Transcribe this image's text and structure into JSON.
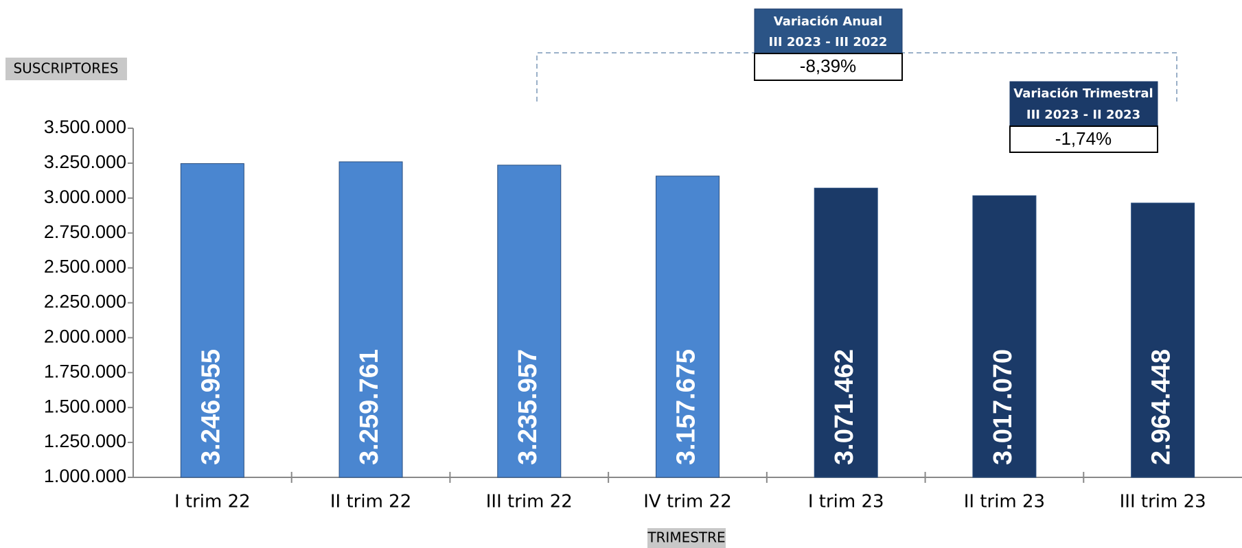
{
  "chart_data": {
    "type": "bar",
    "y_label": "SUSCRIPTORES",
    "x_label": "TRIMESTRE",
    "categories": [
      "I trim 22",
      "II trim 22",
      "III trim 22",
      "IV trim 22",
      "I trim 23",
      "II trim 23",
      "III trim 23"
    ],
    "values": [
      3246955,
      3259761,
      3235957,
      3157675,
      3071462,
      3017070,
      2964448
    ],
    "value_labels": [
      "3.246.955",
      "3.259.761",
      "3.235.957",
      "3.157.675",
      "3.071.462",
      "3.017.070",
      "2.964.448"
    ],
    "colors": [
      "#4a86d0",
      "#4a86d0",
      "#4a86d0",
      "#4a86d0",
      "#1b3a68",
      "#1b3a68",
      "#1b3a68"
    ],
    "ylim": [
      1000000,
      3500000
    ],
    "yticks": [
      {
        "value": 1000000,
        "label": "1.000.000"
      },
      {
        "value": 1250000,
        "label": "1.250.000"
      },
      {
        "value": 1500000,
        "label": "1.500.000"
      },
      {
        "value": 1750000,
        "label": "1.750.000"
      },
      {
        "value": 2000000,
        "label": "2.000.000"
      },
      {
        "value": 2250000,
        "label": "2.250.000"
      },
      {
        "value": 2500000,
        "label": "2.500.000"
      },
      {
        "value": 2750000,
        "label": "2.750.000"
      },
      {
        "value": 3000000,
        "label": "3.000.000"
      },
      {
        "value": 3250000,
        "label": "3.250.000"
      },
      {
        "value": 3500000,
        "label": "3.500.000"
      }
    ],
    "grid": false,
    "annotations": [
      {
        "title": "Variación Anual",
        "subtitle": "III 2023 - III 2022",
        "value": "-8,39%"
      },
      {
        "title": "Variación Trimestral",
        "subtitle": "III 2023 - II 2023",
        "value": "-1,74%"
      }
    ]
  }
}
